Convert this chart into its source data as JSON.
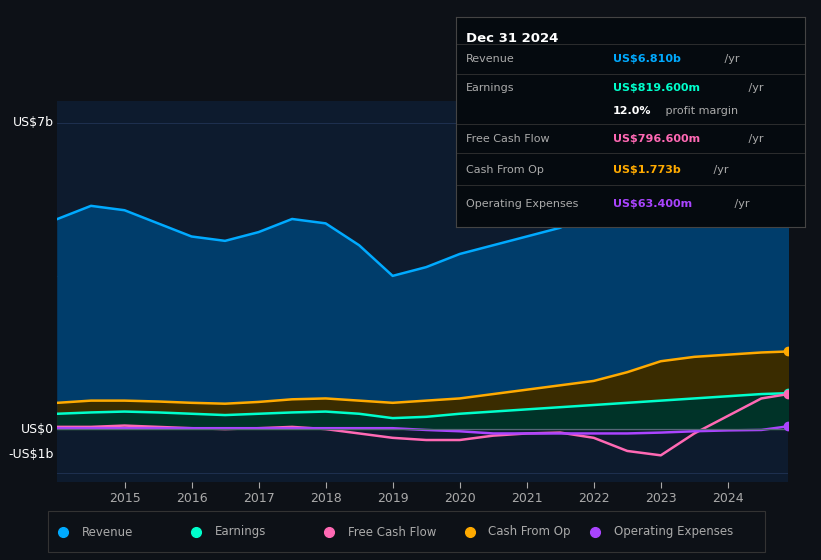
{
  "years": [
    2014.0,
    2014.5,
    2015.0,
    2015.5,
    2016.0,
    2016.5,
    2017.0,
    2017.5,
    2018.0,
    2018.5,
    2019.0,
    2019.5,
    2020.0,
    2020.5,
    2021.0,
    2021.5,
    2022.0,
    2022.5,
    2023.0,
    2023.5,
    2024.0,
    2024.5,
    2024.9
  ],
  "revenue": [
    4.8,
    5.1,
    5.0,
    4.7,
    4.4,
    4.3,
    4.5,
    4.8,
    4.7,
    4.2,
    3.5,
    3.7,
    4.0,
    4.2,
    4.4,
    4.6,
    5.0,
    5.4,
    5.7,
    6.0,
    6.4,
    6.7,
    6.81
  ],
  "earnings": [
    0.35,
    0.38,
    0.4,
    0.38,
    0.35,
    0.32,
    0.35,
    0.38,
    0.4,
    0.35,
    0.25,
    0.28,
    0.35,
    0.4,
    0.45,
    0.5,
    0.55,
    0.6,
    0.65,
    0.7,
    0.75,
    0.8,
    0.82
  ],
  "free_cash_flow": [
    0.05,
    0.05,
    0.08,
    0.05,
    0.02,
    0.0,
    0.02,
    0.05,
    0.0,
    -0.1,
    -0.2,
    -0.25,
    -0.25,
    -0.15,
    -0.1,
    -0.08,
    -0.2,
    -0.5,
    -0.6,
    -0.1,
    0.3,
    0.7,
    0.8
  ],
  "cash_from_op": [
    0.6,
    0.65,
    0.65,
    0.63,
    0.6,
    0.58,
    0.62,
    0.68,
    0.7,
    0.65,
    0.6,
    0.65,
    0.7,
    0.8,
    0.9,
    1.0,
    1.1,
    1.3,
    1.55,
    1.65,
    1.7,
    1.75,
    1.773
  ],
  "operating_expenses": [
    0.02,
    0.02,
    0.02,
    0.02,
    0.02,
    0.02,
    0.02,
    0.02,
    0.02,
    0.02,
    0.02,
    -0.02,
    -0.05,
    -0.1,
    -0.1,
    -0.1,
    -0.1,
    -0.1,
    -0.08,
    -0.05,
    -0.03,
    -0.02,
    0.0634
  ],
  "bg_color": "#0d1117",
  "chart_bg_color": "#0d1b2e",
  "revenue_color": "#00aaff",
  "earnings_color": "#00ffcc",
  "free_cash_flow_color": "#ff69b4",
  "cash_from_op_color": "#ffaa00",
  "operating_expenses_color": "#aa44ff",
  "grid_color": "#1e3050",
  "text_color": "#aaaaaa",
  "title_text_color": "#ffffff",
  "info_box": {
    "date": "Dec 31 2024",
    "revenue_label": "Revenue",
    "revenue_value": "US$6.810b",
    "revenue_unit": " /yr",
    "earnings_label": "Earnings",
    "earnings_value": "US$819.600m",
    "earnings_unit": " /yr",
    "profit_margin": "12.0%",
    "profit_margin_text": " profit margin",
    "fcf_label": "Free Cash Flow",
    "fcf_value": "US$796.600m",
    "fcf_unit": " /yr",
    "cashop_label": "Cash From Op",
    "cashop_value": "US$1.773b",
    "cashop_unit": " /yr",
    "opex_label": "Operating Expenses",
    "opex_value": "US$63.400m",
    "opex_unit": " /yr"
  },
  "legend_items": [
    {
      "label": "Revenue",
      "color": "#00aaff"
    },
    {
      "label": "Earnings",
      "color": "#00ffcc"
    },
    {
      "label": "Free Cash Flow",
      "color": "#ff69b4"
    },
    {
      "label": "Cash From Op",
      "color": "#ffaa00"
    },
    {
      "label": "Operating Expenses",
      "color": "#aa44ff"
    }
  ]
}
